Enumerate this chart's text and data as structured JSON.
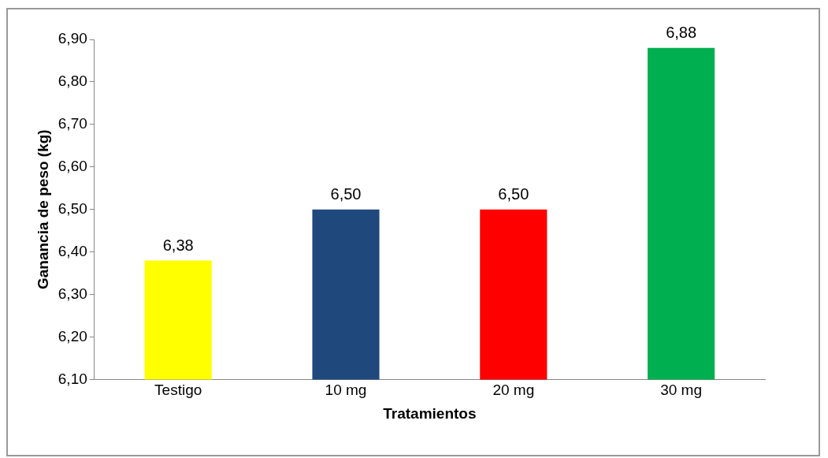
{
  "chart_data": {
    "type": "bar",
    "xlabel": "Tratamientos",
    "ylabel": "Ganancia de peso (kg)",
    "categories": [
      "Testigo",
      "10 mg",
      "20 mg",
      "30 mg"
    ],
    "values": [
      6.38,
      6.5,
      6.5,
      6.88
    ],
    "colors": [
      "#ffff00",
      "#1f497d",
      "#ff0000",
      "#00b050"
    ],
    "value_labels": [
      "6,38",
      "6,50",
      "6,50",
      "6,88"
    ],
    "ylim": [
      6.1,
      6.9
    ],
    "yticks": [
      {
        "value": 6.1,
        "label": "6,10"
      },
      {
        "value": 6.2,
        "label": "6,20"
      },
      {
        "value": 6.3,
        "label": "6,30"
      },
      {
        "value": 6.4,
        "label": "6,40"
      },
      {
        "value": 6.5,
        "label": "6,50"
      },
      {
        "value": 6.6,
        "label": "6,60"
      },
      {
        "value": 6.7,
        "label": "6,70"
      },
      {
        "value": 6.8,
        "label": "6,80"
      },
      {
        "value": 6.9,
        "label": "6,90"
      }
    ],
    "grid": false,
    "legend": false
  }
}
